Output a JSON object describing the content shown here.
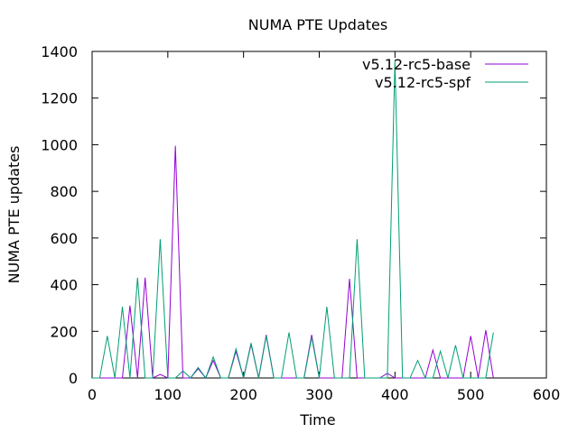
{
  "chart_data": {
    "type": "line",
    "title": "NUMA PTE Updates",
    "xlabel": "Time",
    "ylabel": "NUMA PTE updates",
    "xlim": [
      0,
      600
    ],
    "ylim": [
      0,
      1400
    ],
    "xticks": [
      0,
      100,
      200,
      300,
      400,
      500,
      600
    ],
    "yticks": [
      0,
      200,
      400,
      600,
      800,
      1000,
      1200,
      1400
    ],
    "grid": false,
    "legend_position": "top-right",
    "x": [
      0,
      10,
      20,
      30,
      40,
      50,
      60,
      70,
      80,
      90,
      100,
      110,
      120,
      130,
      140,
      150,
      160,
      170,
      180,
      190,
      200,
      210,
      220,
      230,
      240,
      250,
      260,
      270,
      280,
      290,
      300,
      310,
      320,
      330,
      340,
      350,
      360,
      370,
      380,
      390,
      400,
      410,
      420,
      430,
      440,
      450,
      460,
      470,
      480,
      490,
      500,
      510,
      520,
      530
    ],
    "series": [
      {
        "name": "v5.12-rc5-base",
        "color": "#9400d3",
        "values": [
          0,
          0,
          0,
          0,
          0,
          310,
          0,
          430,
          0,
          15,
          0,
          995,
          0,
          0,
          40,
          0,
          75,
          0,
          0,
          115,
          0,
          145,
          0,
          185,
          0,
          0,
          0,
          0,
          0,
          185,
          0,
          0,
          0,
          0,
          425,
          0,
          0,
          0,
          0,
          20,
          0,
          0,
          0,
          0,
          0,
          120,
          0,
          0,
          0,
          0,
          180,
          0,
          205,
          0
        ]
      },
      {
        "name": "v5.12-rc5-spf",
        "color": "#009e73",
        "values": [
          0,
          0,
          180,
          0,
          305,
          0,
          430,
          0,
          0,
          595,
          0,
          0,
          30,
          0,
          45,
          0,
          90,
          0,
          0,
          125,
          0,
          150,
          0,
          180,
          0,
          0,
          195,
          0,
          0,
          175,
          0,
          305,
          0,
          0,
          0,
          595,
          0,
          0,
          0,
          0,
          1360,
          0,
          0,
          75,
          0,
          0,
          115,
          0,
          140,
          0,
          0,
          0,
          0,
          195
        ]
      }
    ]
  }
}
